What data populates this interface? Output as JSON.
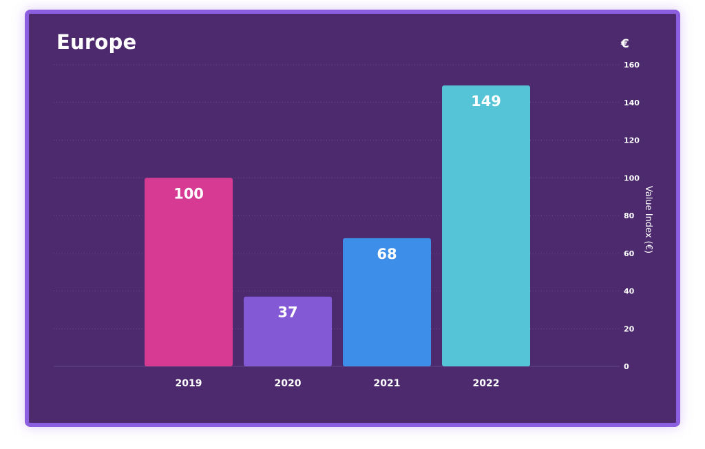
{
  "chart_data": {
    "type": "bar",
    "title": "Europe",
    "unit_symbol": "€",
    "categories": [
      "2019",
      "2020",
      "2021",
      "2022"
    ],
    "values": [
      100,
      37,
      68,
      149
    ],
    "bar_colors": [
      "#d63a92",
      "#8359d6",
      "#3d8ee9",
      "#55c4d6"
    ],
    "xlabel": "",
    "ylabel": "Value Index (€)",
    "ylim": [
      0,
      160
    ],
    "yticks": [
      0,
      20,
      40,
      60,
      80,
      100,
      120,
      140,
      160
    ],
    "y_axis_position": "right",
    "grid": true,
    "data_labels": true
  }
}
